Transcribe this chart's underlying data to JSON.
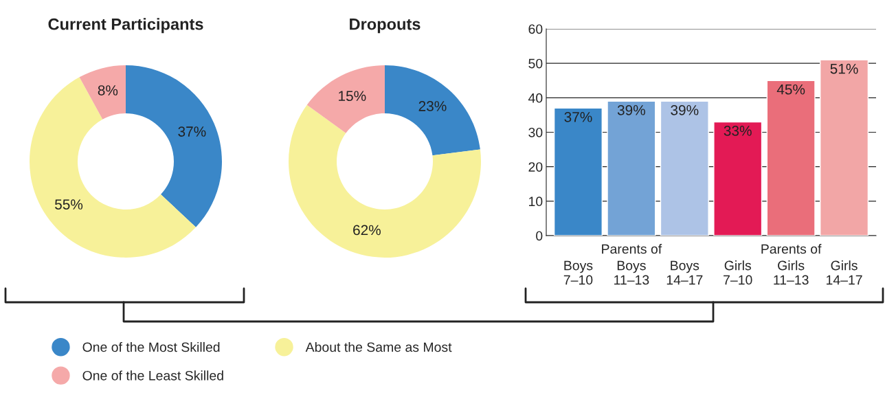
{
  "chart_data": [
    {
      "type": "donut",
      "title": "Current Participants",
      "categories": [
        "One of the Most Skilled",
        "About the Same as Most",
        "One of the Least Skilled"
      ],
      "values": [
        37,
        55,
        8
      ],
      "colors": [
        "#3a87c8",
        "#f7f199",
        "#f5a9a9"
      ],
      "value_labels": [
        "37%",
        "55%",
        "8%"
      ],
      "legend": "bottom"
    },
    {
      "type": "donut",
      "title": "Dropouts",
      "values": [
        23,
        62,
        15
      ],
      "colors": [
        "#3a87c8",
        "#f7f199",
        "#f5a9a9"
      ],
      "value_labels": [
        "23%",
        "62%",
        "15%"
      ]
    },
    {
      "type": "bar",
      "categories": [
        "Boys\n7–10",
        "Boys\n11–13",
        "Boys\n14–17",
        "Girls\n7–10",
        "Girls\n11–13",
        "Girls\n14–17"
      ],
      "values": [
        37,
        39,
        39,
        33,
        45,
        51
      ],
      "colors": [
        "#3a87c8",
        "#73a3d6",
        "#adc3e6",
        "#e31a55",
        "#ea6e7a",
        "#f2a6a6"
      ],
      "value_labels": [
        "37%",
        "39%",
        "39%",
        "33%",
        "45%",
        "51%"
      ],
      "ylim": [
        0,
        60
      ],
      "yticks": [
        0,
        10,
        20,
        30,
        40,
        50,
        60
      ],
      "grid": "y",
      "annotations": [
        "Parents of",
        "Parents of"
      ]
    }
  ]
}
